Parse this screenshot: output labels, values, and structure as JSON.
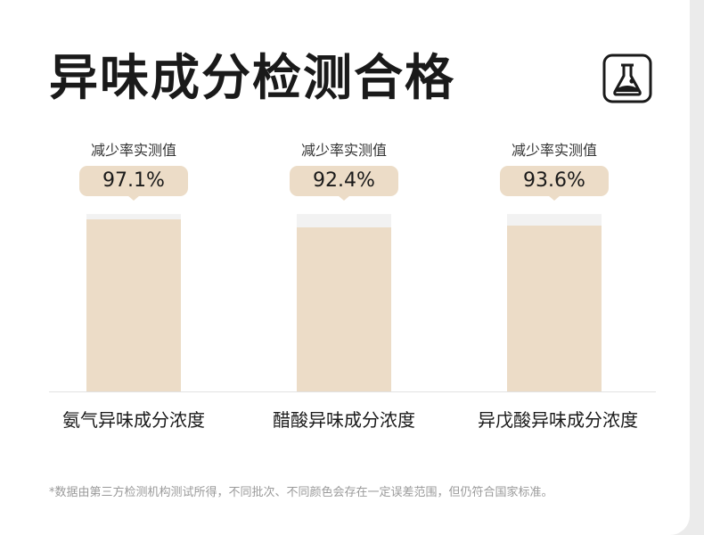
{
  "title": "异味成分检测合格",
  "icon": "lab-flask-icon",
  "colors": {
    "bar": "#ecdcc7",
    "bar_track": "#f2f2f2",
    "text": "#1a1a1a",
    "footnote": "#9a9a9a"
  },
  "chart_data": {
    "type": "bar",
    "title": "异味成分检测合格",
    "categories": [
      "氨气异味成分浓度",
      "醋酸异味成分浓度",
      "异戊酸异味成分浓度"
    ],
    "series": [
      {
        "name": "减少率实测值",
        "values": [
          97.1,
          92.4,
          93.6
        ]
      }
    ],
    "value_labels": [
      "97.1%",
      "92.4%",
      "93.6%"
    ],
    "caption": "减少率实测值",
    "ylim": [
      0,
      100
    ],
    "grid": false
  },
  "footnote": "*数据由第三方检测机构测试所得，不同批次、不同颜色会存在一定误差范围，但仍符合国家标准。"
}
